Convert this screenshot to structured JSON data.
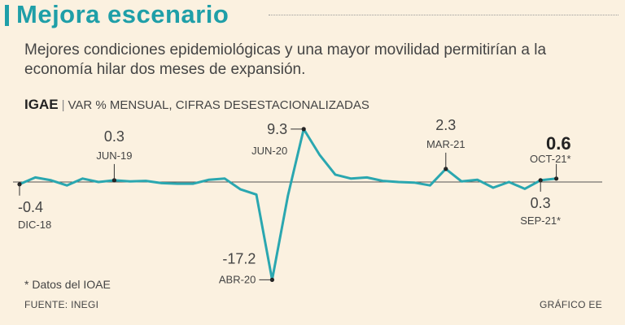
{
  "header": {
    "title": "Mejora escenario",
    "subtitle": "Mejores condiciones epidemiológicas y una mayor movilidad permitirían a la economía hilar dos meses de expansión.",
    "indicator": "IGAE",
    "indicator_desc": "VAR % MENSUAL, CIFRAS DESESTACIONALIZADAS"
  },
  "footer": {
    "footnote": "* Datos del IOAE",
    "source": "FUENTE: INEGI",
    "credit": "GRÁFICO EE"
  },
  "colors": {
    "accent": "#1f9fa8",
    "line": "#2aa7b0",
    "zero": "#555555"
  },
  "chart_data": {
    "type": "line",
    "title": "IGAE",
    "subtitle": "VAR % MENSUAL, CIFRAS DESESTACIONALIZADAS",
    "x_start": "DIC-18",
    "x_end": "OCT-21",
    "ylim": [
      -17.2,
      9.3
    ],
    "values": [
      -0.4,
      0.8,
      0.3,
      -0.6,
      0.6,
      0.0,
      0.3,
      0.1,
      0.2,
      -0.2,
      -0.3,
      -0.3,
      0.4,
      0.6,
      -1.3,
      -2.2,
      -17.2,
      -2.4,
      9.3,
      4.8,
      1.3,
      0.6,
      0.8,
      0.2,
      0.0,
      -0.1,
      -0.6,
      2.3,
      0.1,
      0.4,
      -1.0,
      0.0,
      -1.2,
      0.3,
      0.6
    ],
    "annotations": [
      {
        "index": 0,
        "value": "-0.4",
        "date": "DIC-18",
        "pos": "below"
      },
      {
        "index": 6,
        "value": "0.3",
        "date": "JUN-19",
        "pos": "above"
      },
      {
        "index": 16,
        "value": "-17.2",
        "date": "ABR-20",
        "pos": "left-below"
      },
      {
        "index": 18,
        "value": "9.3",
        "date": "JUN-20",
        "pos": "left-above"
      },
      {
        "index": 27,
        "value": "2.3",
        "date": "MAR-21",
        "pos": "above"
      },
      {
        "index": 33,
        "value": "0.3",
        "date": "SEP-21*",
        "pos": "below"
      },
      {
        "index": 34,
        "value": "0.6",
        "date": "OCT-21*",
        "pos": "above-bold"
      }
    ]
  }
}
